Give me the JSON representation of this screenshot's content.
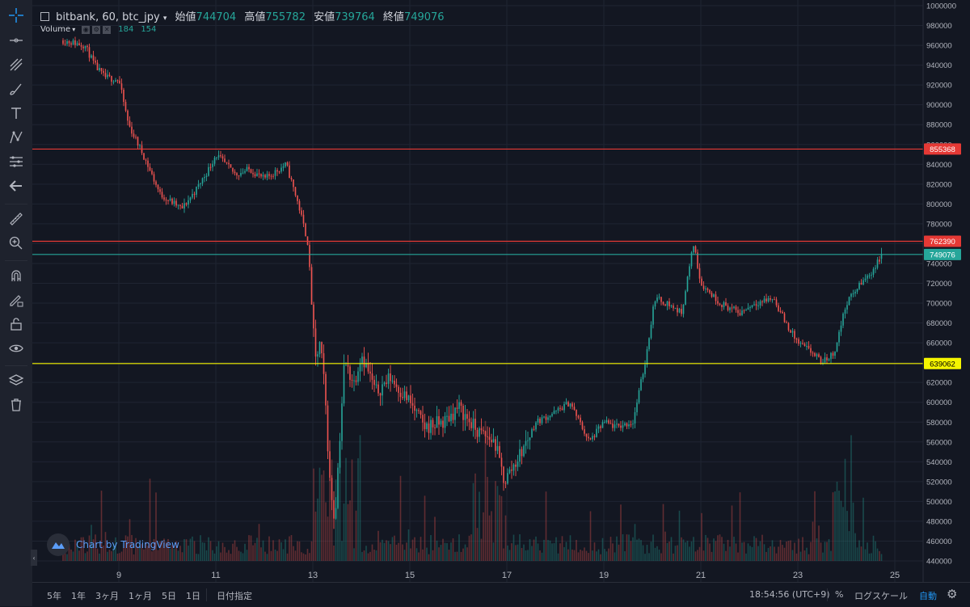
{
  "legend": {
    "symbol": "bitbank, 60, btc_jpy",
    "open_label": "始値",
    "open": "744704",
    "high_label": "高値",
    "high": "755782",
    "low_label": "安値",
    "low": "739764",
    "close_label": "終値",
    "close": "749076"
  },
  "volume_legend": {
    "name": "Volume",
    "value1": "184",
    "value2": "154"
  },
  "watermark": "Chart by TradingView",
  "chart_data": {
    "type": "candlestick",
    "x_tick_labels": [
      "9",
      "11",
      "13",
      "15",
      "17",
      "19",
      "21",
      "23",
      "25"
    ],
    "y_tick_labels": [
      "1000000",
      "980000",
      "960000",
      "940000",
      "920000",
      "900000",
      "880000",
      "860000",
      "840000",
      "820000",
      "800000",
      "780000",
      "760000",
      "740000",
      "720000",
      "700000",
      "680000",
      "660000",
      "640000",
      "620000",
      "600000",
      "580000",
      "560000",
      "540000",
      "520000",
      "500000",
      "480000",
      "460000",
      "440000"
    ],
    "ylim": [
      440000,
      1000000
    ],
    "path_day": [
      7.85,
      8.3,
      8.5,
      8.7,
      9.0,
      9.2,
      9.5,
      9.85,
      10.3,
      10.6,
      10.85,
      11.0,
      11.4,
      11.7,
      12.0,
      12.45,
      12.7,
      12.9,
      13.05,
      13.15,
      13.25,
      13.35,
      13.45,
      13.55,
      13.65,
      13.85,
      14.0,
      14.3,
      14.6,
      15.0,
      15.3,
      15.7,
      16.0,
      16.4,
      16.75,
      16.95,
      17.3,
      17.6,
      18.0,
      18.3,
      18.7,
      19.0,
      19.25,
      19.6,
      19.85,
      20.05,
      20.3,
      20.6,
      20.85,
      21.0,
      21.4,
      21.8,
      22.1,
      22.5,
      22.75,
      23.0,
      23.3,
      23.5,
      23.75,
      24.0,
      24.3,
      24.5,
      24.75
    ],
    "path_price": [
      965000,
      960000,
      940000,
      928000,
      925000,
      880000,
      850000,
      810000,
      795000,
      815000,
      835000,
      850000,
      830000,
      835000,
      825000,
      840000,
      800000,
      760000,
      640000,
      660000,
      610000,
      520000,
      480000,
      560000,
      640000,
      620000,
      650000,
      610000,
      625000,
      600000,
      575000,
      580000,
      595000,
      570000,
      560000,
      520000,
      550000,
      580000,
      590000,
      600000,
      560000,
      580000,
      575000,
      580000,
      640000,
      705000,
      700000,
      690000,
      760000,
      720000,
      700000,
      690000,
      700000,
      705000,
      680000,
      660000,
      650000,
      640000,
      650000,
      700000,
      720000,
      730000,
      749076
    ],
    "horizontal_levels": [
      {
        "label": "855368",
        "value": 855368,
        "color": "#e53935",
        "label_text_color": "#ffffff"
      },
      {
        "label": "762390",
        "value": 762390,
        "color": "#e53935",
        "label_text_color": "#ffffff"
      },
      {
        "label": "749076",
        "value": 749076,
        "color": "#26a69a",
        "label_text_color": "#ffffff"
      },
      {
        "label": "639062",
        "value": 639062,
        "color": "#f5f500",
        "label_text_color": "#000000"
      }
    ],
    "colors": {
      "up": "#26a69a",
      "down": "#ef5350",
      "background": "#131722",
      "grid": "#1f2432"
    }
  },
  "bottom_bar": {
    "ranges": [
      "5年",
      "1年",
      "3ヶ月",
      "1ヶ月",
      "5日",
      "1日"
    ],
    "goto_date": "日付指定",
    "time": "18:54:56 (UTC+9)",
    "percent": "%",
    "log_scale": "ログスケール",
    "auto": "自動"
  },
  "icons": [
    "crosshair-icon",
    "trend-line-icon",
    "fib-icon",
    "brush-icon",
    "text-icon",
    "pattern-icon",
    "prediction-icon",
    "back-arrow-icon",
    "ruler-icon",
    "zoom-in-icon",
    "magnet-icon",
    "lock-drawing-icon",
    "unlock-icon",
    "eye-icon",
    "layers-icon",
    "trash-icon",
    "gear-icon"
  ]
}
